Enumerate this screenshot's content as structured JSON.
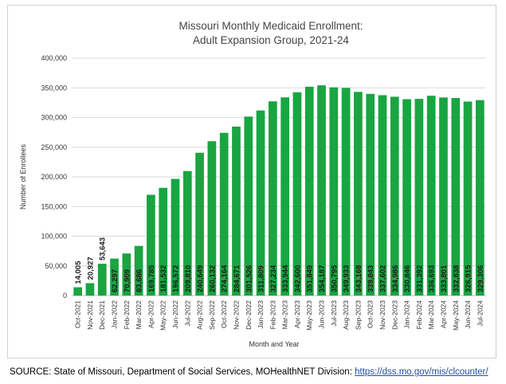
{
  "chart_data": {
    "type": "bar",
    "title_lines": [
      "Missouri Monthly Medicaid Enrollment:",
      "Adult Expansion Group, 2021-24"
    ],
    "xlabel": "Month and Year",
    "ylabel": "Number of Enrollees",
    "ylim": [
      0,
      400000
    ],
    "yticks": [
      0,
      50000,
      100000,
      150000,
      200000,
      250000,
      300000,
      350000,
      400000
    ],
    "ytick_labels": [
      "0",
      "50,000",
      "100,000",
      "150,000",
      "200,000",
      "250,000",
      "300,000",
      "350,000",
      "400,000"
    ],
    "categories": [
      "Oct-2021",
      "Nov-2021",
      "Dec-2021",
      "Jan-2022",
      "Feb-2022",
      "Mar-2022",
      "Apr-2022",
      "May-2022",
      "Jun-2022",
      "Jul-2022",
      "Aug-2022",
      "Sep-2022",
      "Oct-2022",
      "Nov-2022",
      "Dec-2022",
      "Jan-2023",
      "Feb-2023",
      "Mar-2023",
      "Apr-2023",
      "May-2023",
      "Jun-2023",
      "Jul-2023",
      "Aug-2023",
      "Sep-2023",
      "Oct-2023",
      "Nov-2023",
      "Dec-2023",
      "Jan-2024",
      "Feb-2024",
      "Mar-2024",
      "Apr-2024",
      "May-2024",
      "Jun-2024",
      "Jul-2024"
    ],
    "values": [
      14005,
      20927,
      53643,
      62297,
      70909,
      83686,
      169785,
      181532,
      196572,
      209810,
      240649,
      260132,
      274164,
      284671,
      301526,
      311809,
      327234,
      333944,
      342600,
      351849,
      354187,
      350795,
      349933,
      343168,
      339843,
      337602,
      334986,
      330846,
      331392,
      336693,
      333801,
      332838,
      326915,
      329306
    ],
    "value_labels": [
      "14,005",
      "20,927",
      "53,643",
      "62,297",
      "70,909",
      "83,686",
      "169,785",
      "181,532",
      "196,572",
      "209,810",
      "240,649",
      "260,132",
      "274,164",
      "284,671",
      "301,526",
      "311,809",
      "327,234",
      "333,944",
      "342,600",
      "351,849",
      "354,187",
      "350,795",
      "349,933",
      "343,168",
      "339,843",
      "337,602",
      "334,986",
      "330,846",
      "331,392",
      "336,693",
      "333,801",
      "332,838",
      "326,915",
      "329,306"
    ],
    "bar_color": "#19a541",
    "grid": true
  },
  "source": {
    "prefix": "SOURCE: State of Missouri, Department of Social Services, MOHealthNET Division:",
    "link": "https://dss.mo.gov/mis/clcounter/"
  }
}
